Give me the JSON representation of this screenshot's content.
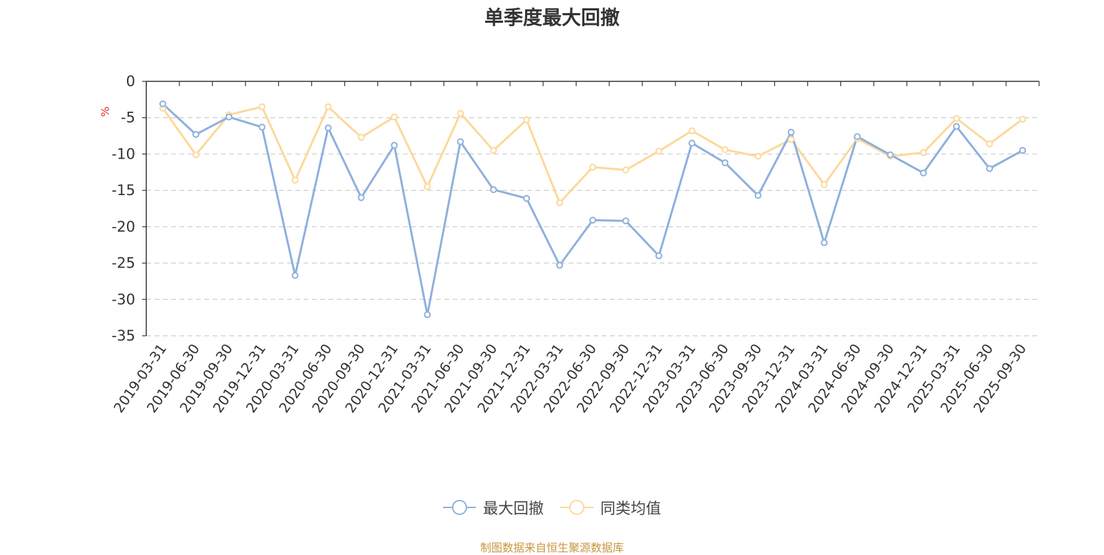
{
  "chart_data": {
    "type": "line",
    "title": "单季度最大回撤",
    "ylabel": "%",
    "ylim": [
      -35,
      0
    ],
    "yticks": [
      0,
      -5,
      -10,
      -15,
      -20,
      -25,
      -30,
      -35
    ],
    "grid": true,
    "legend_position": "bottom-center",
    "categories": [
      "2019-03-31",
      "2019-06-30",
      "2019-09-30",
      "2019-12-31",
      "2020-03-31",
      "2020-06-30",
      "2020-09-30",
      "2020-12-31",
      "2021-03-31",
      "2021-06-30",
      "2021-09-30",
      "2021-12-31",
      "2022-03-31",
      "2022-06-30",
      "2022-09-30",
      "2022-12-31",
      "2023-03-31",
      "2023-06-30",
      "2023-09-30",
      "2023-12-31",
      "2024-03-31",
      "2024-06-30",
      "2024-09-30",
      "2024-12-31",
      "2025-03-31",
      "2025-06-30",
      "2025-09-30"
    ],
    "series": [
      {
        "name": "最大回撤",
        "color": "#8eb0dc",
        "values": [
          -3.1,
          -7.3,
          -4.9,
          -6.3,
          -26.7,
          -6.4,
          -16.0,
          -8.8,
          -32.1,
          -8.3,
          -14.9,
          -16.1,
          -25.3,
          -19.1,
          -19.2,
          -24.0,
          -8.5,
          -11.2,
          -15.7,
          -7.0,
          -22.2,
          -7.6,
          -10.1,
          -12.6,
          -6.2,
          -12.0,
          -9.5
        ]
      },
      {
        "name": "同类均值",
        "color": "#fdd89a",
        "values": [
          -3.7,
          -10.1,
          -4.6,
          -3.5,
          -13.6,
          -3.5,
          -7.7,
          -4.9,
          -14.5,
          -4.4,
          -9.5,
          -5.3,
          -16.7,
          -11.8,
          -12.2,
          -9.6,
          -6.8,
          -9.4,
          -10.3,
          -8.0,
          -14.2,
          -7.9,
          -10.3,
          -9.8,
          -5.1,
          -8.6,
          -5.2
        ]
      }
    ]
  },
  "source_text": "制图数据来自恒生聚源数据库",
  "colors": {
    "grid": "#cccccc",
    "axis": "#333333",
    "ylabel": "#e03030",
    "source": "#c8963e"
  }
}
